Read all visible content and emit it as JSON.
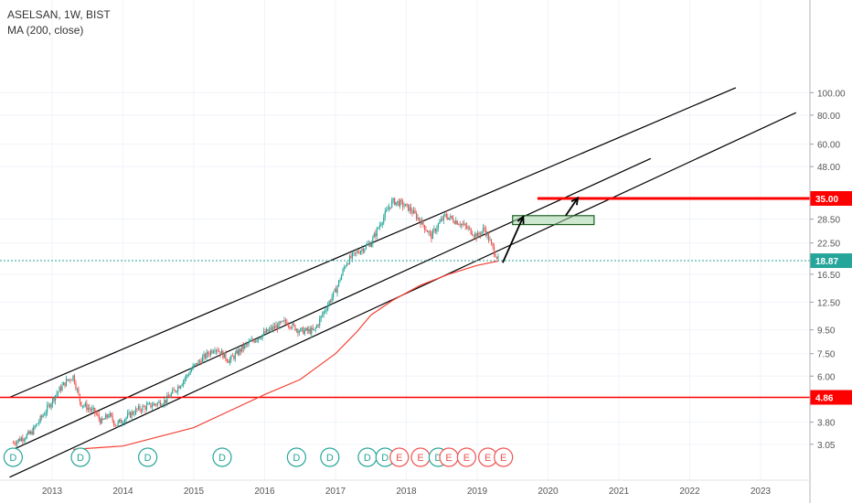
{
  "header": {
    "symbol_line": "ASELSAN, 1W, BIST",
    "indicator_line": "MA (200, close)"
  },
  "colors": {
    "up": "#26a69a",
    "down": "#ef5350",
    "ma": "#f44336",
    "channel": "#000000",
    "target": "#ff0000",
    "current": "#26a69a",
    "box_fill": "#a5d6a7",
    "box_stroke": "#1b5e20",
    "dividend": "#26a69a",
    "earnings": "#ef5350"
  },
  "chart_data": {
    "type": "candlestick",
    "title": "ASELSAN, 1W, BIST",
    "scale": "log",
    "x_axis": {
      "ticks": [
        "2013",
        "2014",
        "2015",
        "2016",
        "2017",
        "2018",
        "2019",
        "2020",
        "2021",
        "2022",
        "2023"
      ]
    },
    "y_axis": {
      "ticks": [
        "100.00",
        "80.00",
        "60.00",
        "48.00",
        "35.00",
        "28.50",
        "22.50",
        "18.87",
        "16.50",
        "12.50",
        "9.50",
        "7.50",
        "6.00",
        "4.86",
        "3.80",
        "3.05"
      ],
      "tick_values": [
        100,
        80,
        60,
        48,
        28.5,
        22.5,
        16.5,
        12.5,
        9.5,
        7.5,
        6.0,
        3.8,
        3.05
      ],
      "range": [
        3.0,
        100
      ]
    },
    "price_path": [
      [
        2012.45,
        3.1
      ],
      [
        2012.7,
        3.4
      ],
      [
        2012.9,
        4.2
      ],
      [
        2013.05,
        5.0
      ],
      [
        2013.2,
        5.7
      ],
      [
        2013.3,
        6.0
      ],
      [
        2013.4,
        4.6
      ],
      [
        2013.6,
        4.2
      ],
      [
        2013.7,
        3.8
      ],
      [
        2013.8,
        4.1
      ],
      [
        2013.9,
        3.7
      ],
      [
        2014.0,
        3.9
      ],
      [
        2014.2,
        4.3
      ],
      [
        2014.4,
        4.5
      ],
      [
        2014.6,
        4.7
      ],
      [
        2014.8,
        5.5
      ],
      [
        2015.0,
        6.6
      ],
      [
        2015.2,
        7.5
      ],
      [
        2015.3,
        8.0
      ],
      [
        2015.5,
        7.0
      ],
      [
        2015.7,
        8.0
      ],
      [
        2015.9,
        8.8
      ],
      [
        2016.1,
        9.6
      ],
      [
        2016.3,
        10.3
      ],
      [
        2016.5,
        9.4
      ],
      [
        2016.7,
        9.4
      ],
      [
        2016.85,
        11.6
      ],
      [
        2017.0,
        14.0
      ],
      [
        2017.15,
        18.5
      ],
      [
        2017.3,
        20.5
      ],
      [
        2017.5,
        22.5
      ],
      [
        2017.65,
        28.0
      ],
      [
        2017.8,
        34.0
      ],
      [
        2017.9,
        33.5
      ],
      [
        2018.05,
        31.5
      ],
      [
        2018.2,
        28.0
      ],
      [
        2018.35,
        24.0
      ],
      [
        2018.45,
        27.0
      ],
      [
        2018.55,
        29.5
      ],
      [
        2018.75,
        27.5
      ],
      [
        2018.9,
        25.5
      ],
      [
        2019.0,
        24.0
      ],
      [
        2019.1,
        26.0
      ],
      [
        2019.2,
        22.0
      ],
      [
        2019.3,
        19.0
      ]
    ],
    "ma_path": [
      [
        2013.3,
        2.9
      ],
      [
        2014.0,
        3.0
      ],
      [
        2015.0,
        3.6
      ],
      [
        2016.0,
        5.0
      ],
      [
        2016.5,
        5.8
      ],
      [
        2017.0,
        7.5
      ],
      [
        2017.3,
        9.3
      ],
      [
        2017.5,
        11.0
      ],
      [
        2017.8,
        12.7
      ],
      [
        2018.2,
        14.8
      ],
      [
        2018.6,
        16.5
      ],
      [
        2019.0,
        18.0
      ],
      [
        2019.3,
        18.8
      ]
    ],
    "channel_lines": [
      {
        "x1": 2012.4,
        "y1": 4.86,
        "x2": 2022.65,
        "y2": 105
      },
      {
        "x1": 2012.4,
        "y1": 2.85,
        "x2": 2021.45,
        "y2": 52
      },
      {
        "x1": 2012.4,
        "y1": 2.2,
        "x2": 2023.5,
        "y2": 82
      }
    ],
    "levels": [
      {
        "label": "35.00",
        "value": 35.0,
        "style": "target"
      },
      {
        "label": "18.87",
        "value": 18.87,
        "style": "current"
      },
      {
        "label": "4.86",
        "value": 4.86,
        "style": "support"
      }
    ],
    "target_box": {
      "x1": 2019.5,
      "x2": 2020.65,
      "y_low": 27.0,
      "y_high": 29.5
    },
    "projection_arrows": [
      {
        "x1": 2019.36,
        "y1": 18.5,
        "x2": 2019.65,
        "y2": 29.2
      },
      {
        "x1": 2020.25,
        "y1": 29.5,
        "x2": 2020.42,
        "y2": 35.2
      }
    ],
    "events": [
      {
        "type": "D",
        "x": 2012.45
      },
      {
        "type": "D",
        "x": 2013.4
      },
      {
        "type": "D",
        "x": 2014.35
      },
      {
        "type": "D",
        "x": 2015.4
      },
      {
        "type": "D",
        "x": 2016.45
      },
      {
        "type": "D",
        "x": 2016.92
      },
      {
        "type": "D",
        "x": 2017.45
      },
      {
        "type": "D",
        "x": 2017.7
      },
      {
        "type": "E",
        "x": 2017.9
      },
      {
        "type": "E",
        "x": 2018.2
      },
      {
        "type": "D",
        "x": 2018.45
      },
      {
        "type": "E",
        "x": 2018.6
      },
      {
        "type": "E",
        "x": 2018.85
      },
      {
        "type": "E",
        "x": 2019.15
      },
      {
        "type": "E",
        "x": 2019.37
      }
    ]
  }
}
